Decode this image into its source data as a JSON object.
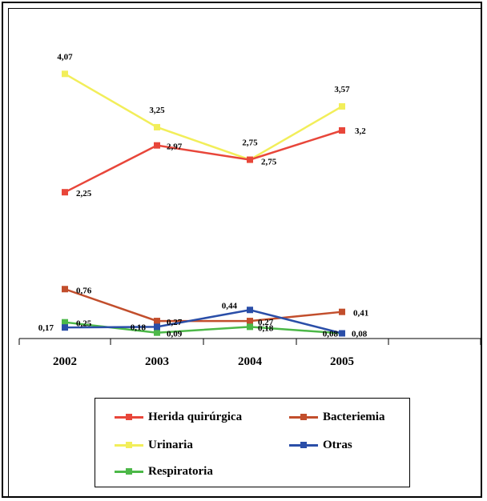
{
  "chart_data": {
    "type": "line",
    "categories": [
      "2002",
      "2003",
      "2004",
      "2005"
    ],
    "ylim": [
      0,
      4.5
    ],
    "grid": false,
    "legend_position": "bottom",
    "series": [
      {
        "name": "Herida quirúrgica",
        "color": "#e8463a",
        "values": [
          2.25,
          2.97,
          2.75,
          3.2
        ],
        "labels": [
          "2,25",
          "2,97",
          "2,75",
          "3,2"
        ]
      },
      {
        "name": "Bacteriemia",
        "color": "#c24e2c",
        "values": [
          0.76,
          0.27,
          0.27,
          0.41
        ],
        "labels": [
          "0,76",
          "0,27",
          "0,27",
          "0,41"
        ]
      },
      {
        "name": "Urinaria",
        "color": "#f2ee5a",
        "values": [
          4.07,
          3.25,
          2.75,
          3.57
        ],
        "labels": [
          "4,07",
          "3,25",
          "2,75",
          "3,57"
        ]
      },
      {
        "name": "Otras",
        "color": "#2a4ea8",
        "values": [
          0.17,
          0.18,
          0.44,
          0.08
        ],
        "labels": [
          "0,17",
          "0,18",
          "0,44",
          "0,08"
        ]
      },
      {
        "name": "Respiratoria",
        "color": "#4cb848",
        "values": [
          0.25,
          0.09,
          0.18,
          0.08
        ],
        "labels": [
          "0,25",
          "0,09",
          "0,18",
          "0,08"
        ]
      }
    ]
  }
}
